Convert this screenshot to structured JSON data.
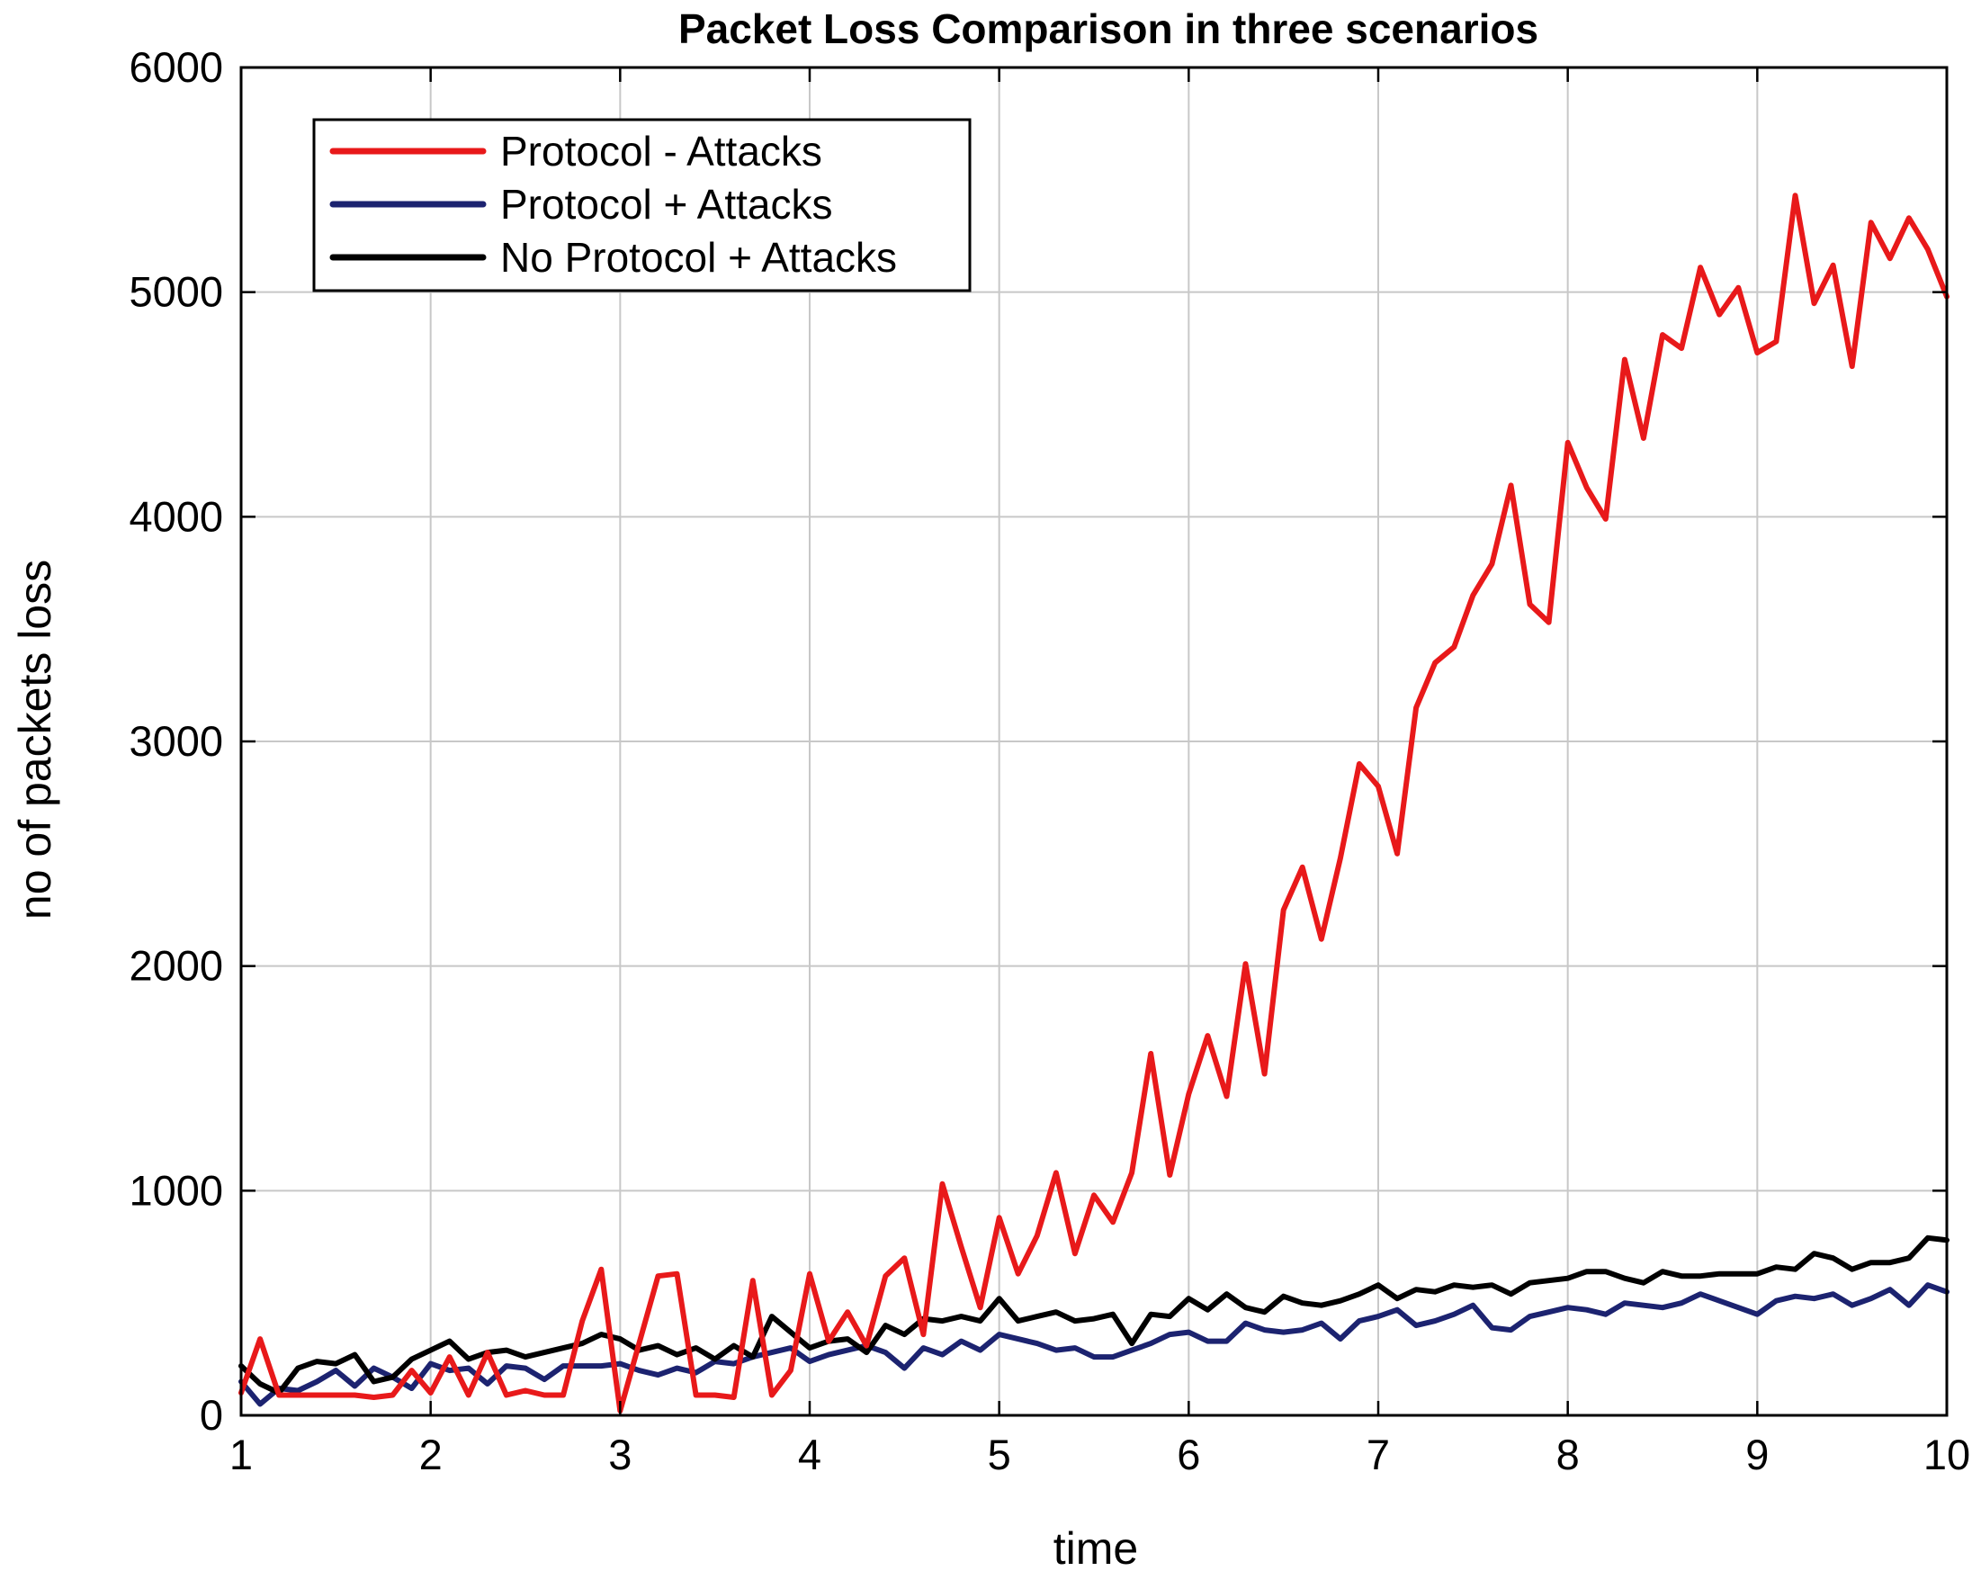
{
  "chart_data": {
    "type": "line",
    "title": "Packet Loss Comparison in three scenarios",
    "xlabel": "time",
    "ylabel": "no of packets loss",
    "xlim": [
      1,
      10
    ],
    "ylim": [
      0,
      6000
    ],
    "xticks": [
      1,
      2,
      3,
      4,
      5,
      6,
      7,
      8,
      9,
      10
    ],
    "yticks": [
      0,
      1000,
      2000,
      3000,
      4000,
      5000,
      6000
    ],
    "xtick_labels": [
      "1",
      "2",
      "3",
      "4",
      "5",
      "6",
      "7",
      "8",
      "9",
      "10"
    ],
    "ytick_labels": [
      "0",
      "1000",
      "2000",
      "3000",
      "4000",
      "5000",
      "6000"
    ],
    "grid": true,
    "legend_position": "top-left",
    "series": [
      {
        "name": "Protocol - Attacks",
        "color": "#e8191a",
        "x": [
          1.0,
          1.1,
          1.2,
          1.3,
          1.4,
          1.5,
          1.6,
          1.7,
          1.8,
          1.9,
          2.0,
          2.1,
          2.2,
          2.3,
          2.4,
          2.5,
          2.6,
          2.7,
          2.8,
          2.9,
          3.0,
          3.1,
          3.2,
          3.3,
          3.4,
          3.5,
          3.6,
          3.7,
          3.8,
          3.9,
          4.0,
          4.1,
          4.2,
          4.3,
          4.4,
          4.5,
          4.6,
          4.7,
          4.8,
          4.9,
          5.0,
          5.1,
          5.2,
          5.3,
          5.4,
          5.5,
          5.6,
          5.7,
          5.8,
          5.9,
          6.0,
          6.1,
          6.2,
          6.3,
          6.4,
          6.5,
          6.6,
          6.7,
          6.8,
          6.9,
          7.0,
          7.1,
          7.2,
          7.3,
          7.4,
          7.5,
          7.6,
          7.7,
          7.8,
          7.9,
          8.0,
          8.1,
          8.2,
          8.3,
          8.4,
          8.5,
          8.6,
          8.7,
          8.8,
          8.9,
          9.0,
          9.1,
          9.2,
          9.3,
          9.4,
          9.5,
          9.6,
          9.7,
          9.8,
          9.9,
          10.0
        ],
        "y": [
          100,
          340,
          90,
          90,
          90,
          90,
          90,
          80,
          90,
          200,
          100,
          260,
          90,
          280,
          90,
          110,
          90,
          90,
          420,
          650,
          20,
          320,
          620,
          630,
          90,
          90,
          80,
          600,
          90,
          200,
          630,
          330,
          460,
          310,
          620,
          700,
          360,
          1030,
          750,
          480,
          880,
          630,
          800,
          1080,
          720,
          980,
          860,
          1080,
          1610,
          1070,
          1430,
          1690,
          1420,
          2010,
          1520,
          2250,
          2440,
          2120,
          2480,
          2900,
          2800,
          2500,
          3150,
          3350,
          3420,
          3650,
          3790,
          4140,
          3610,
          3530,
          4330,
          4130,
          3990,
          4700,
          4350,
          4810,
          4750,
          5110,
          4900,
          5020,
          4730,
          4780,
          5430,
          4950,
          5120,
          4670,
          5310,
          5150,
          5330,
          5190,
          4980
        ]
      },
      {
        "name": "Protocol + Attacks",
        "color": "#1c2370",
        "x": [
          1.0,
          1.1,
          1.2,
          1.3,
          1.4,
          1.5,
          1.6,
          1.7,
          1.8,
          1.9,
          2.0,
          2.1,
          2.2,
          2.3,
          2.4,
          2.5,
          2.6,
          2.7,
          2.8,
          2.9,
          3.0,
          3.1,
          3.2,
          3.3,
          3.4,
          3.5,
          3.6,
          3.7,
          3.8,
          3.9,
          4.0,
          4.1,
          4.2,
          4.3,
          4.4,
          4.5,
          4.6,
          4.7,
          4.8,
          4.9,
          5.0,
          5.1,
          5.2,
          5.3,
          5.4,
          5.5,
          5.6,
          5.7,
          5.8,
          5.9,
          6.0,
          6.1,
          6.2,
          6.3,
          6.4,
          6.5,
          6.6,
          6.7,
          6.8,
          6.9,
          7.0,
          7.1,
          7.2,
          7.3,
          7.4,
          7.5,
          7.6,
          7.7,
          7.8,
          7.9,
          8.0,
          8.1,
          8.2,
          8.3,
          8.4,
          8.5,
          8.6,
          8.7,
          8.8,
          8.9,
          9.0,
          9.1,
          9.2,
          9.3,
          9.4,
          9.5,
          9.6,
          9.7,
          9.8,
          9.9,
          10.0
        ],
        "y": [
          150,
          50,
          120,
          110,
          150,
          200,
          130,
          210,
          170,
          120,
          230,
          200,
          210,
          140,
          220,
          210,
          160,
          220,
          220,
          220,
          230,
          200,
          180,
          210,
          190,
          240,
          230,
          260,
          280,
          300,
          240,
          270,
          290,
          310,
          280,
          210,
          300,
          270,
          330,
          290,
          360,
          340,
          320,
          290,
          300,
          260,
          260,
          290,
          320,
          360,
          370,
          330,
          330,
          410,
          380,
          370,
          380,
          410,
          340,
          420,
          440,
          470,
          400,
          420,
          450,
          490,
          390,
          380,
          440,
          460,
          480,
          470,
          450,
          500,
          490,
          480,
          500,
          540,
          510,
          480,
          450,
          510,
          530,
          520,
          540,
          490,
          520,
          560,
          490,
          580,
          550
        ]
      },
      {
        "name": "No Protocol + Attacks",
        "color": "#000000",
        "x": [
          1.0,
          1.1,
          1.2,
          1.3,
          1.4,
          1.5,
          1.6,
          1.7,
          1.8,
          1.9,
          2.0,
          2.1,
          2.2,
          2.3,
          2.4,
          2.5,
          2.6,
          2.7,
          2.8,
          2.9,
          3.0,
          3.1,
          3.2,
          3.3,
          3.4,
          3.5,
          3.6,
          3.7,
          3.8,
          3.9,
          4.0,
          4.1,
          4.2,
          4.3,
          4.4,
          4.5,
          4.6,
          4.7,
          4.8,
          4.9,
          5.0,
          5.1,
          5.2,
          5.3,
          5.4,
          5.5,
          5.6,
          5.7,
          5.8,
          5.9,
          6.0,
          6.1,
          6.2,
          6.3,
          6.4,
          6.5,
          6.6,
          6.7,
          6.8,
          6.9,
          7.0,
          7.1,
          7.2,
          7.3,
          7.4,
          7.5,
          7.6,
          7.7,
          7.8,
          7.9,
          8.0,
          8.1,
          8.2,
          8.3,
          8.4,
          8.5,
          8.6,
          8.7,
          8.8,
          8.9,
          9.0,
          9.1,
          9.2,
          9.3,
          9.4,
          9.5,
          9.6,
          9.7,
          9.8,
          9.9,
          10.0
        ],
        "y": [
          220,
          140,
          100,
          210,
          240,
          230,
          270,
          150,
          170,
          250,
          290,
          330,
          250,
          280,
          290,
          260,
          280,
          300,
          320,
          360,
          340,
          290,
          310,
          270,
          300,
          250,
          310,
          260,
          440,
          370,
          300,
          330,
          340,
          280,
          400,
          360,
          430,
          420,
          440,
          420,
          520,
          420,
          440,
          460,
          420,
          430,
          450,
          320,
          450,
          440,
          520,
          470,
          540,
          480,
          460,
          530,
          500,
          490,
          510,
          540,
          580,
          520,
          560,
          550,
          580,
          570,
          580,
          540,
          590,
          600,
          610,
          640,
          640,
          610,
          590,
          640,
          620,
          620,
          630,
          630,
          630,
          660,
          650,
          720,
          700,
          650,
          680,
          680,
          700,
          790,
          780
        ]
      }
    ]
  }
}
